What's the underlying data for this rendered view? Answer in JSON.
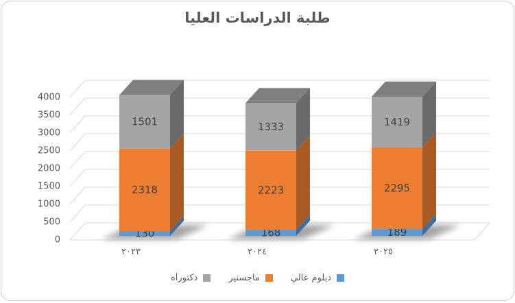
{
  "chart_data": {
    "type": "bar",
    "subtype": "3d-stacked-column",
    "title": "طلبة الدراسات العليا",
    "rtl": true,
    "categories": [
      "٢٠٢٣",
      "٢٠٢٤",
      "٢٠٢٥"
    ],
    "series": [
      {
        "name": "دبلوم عالي",
        "color": "#5b9bd5",
        "side_color": "#3f6e9e",
        "values": [
          130,
          168,
          189
        ]
      },
      {
        "name": "ماجستير",
        "color": "#ed7d31",
        "side_color": "#aa5a23",
        "values": [
          2318,
          2223,
          2295
        ]
      },
      {
        "name": "دكتوراه",
        "color": "#a5a5a5",
        "side_color": "#6a6a6a",
        "top_color": "#7f7f7f",
        "values": [
          1501,
          1333,
          1419
        ]
      }
    ],
    "ylabel": "",
    "xlabel": "",
    "ylim": [
      0,
      4000
    ],
    "ytick_step": 500,
    "yticks": [
      "0",
      "500",
      "1000",
      "1500",
      "2000",
      "2500",
      "3000",
      "3500",
      "4000"
    ],
    "grid": true,
    "legend_position": "bottom",
    "legend_visual_order_left_to_right": [
      "دكتوراه",
      "ماجستير",
      "دبلوم عالي"
    ],
    "style": {
      "title_color": "#595959",
      "axis_text_color": "#595959",
      "data_label_color": "#3f3f3f",
      "gridline_color": "#d9d9d9",
      "shadow_color": "#8f8f8f",
      "frame_border_color": "#cccccc"
    }
  }
}
